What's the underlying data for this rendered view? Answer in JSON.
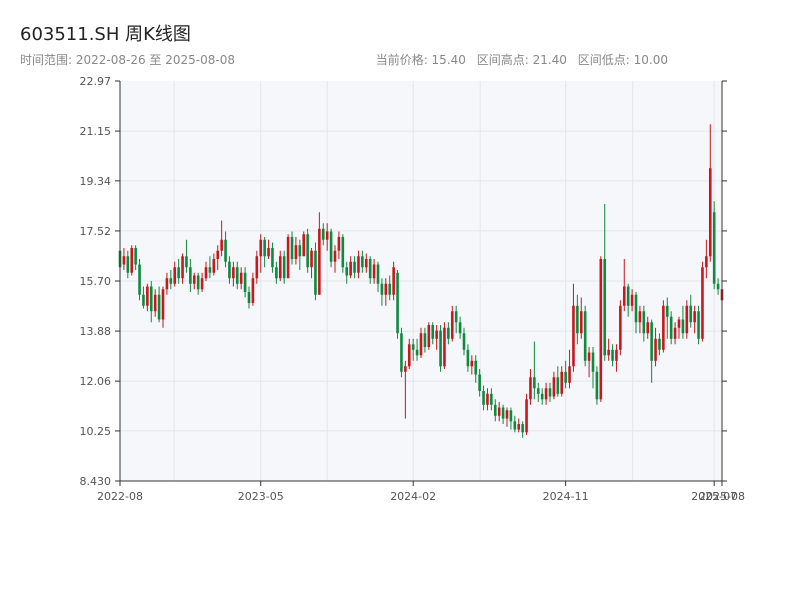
{
  "header": {
    "title": "603511.SH 周K线图",
    "range": "时间范围: 2022-08-26 至 2025-08-08",
    "current": "当前价格: 15.40",
    "high": "区间高点: 21.40",
    "low": "区间低点: 10.00"
  },
  "colors": {
    "up": "#c8171e",
    "down": "#0e8a3e",
    "plot_bg": "#f5f7fa",
    "grid": "#e3e6ea",
    "axis": "#333333"
  },
  "chart_data": {
    "type": "candlestick",
    "title": "603511.SH 周K线图",
    "xlabel": "",
    "ylabel": "",
    "ylim": [
      8.43,
      22.97
    ],
    "xlim": [
      "2022-08-26",
      "2025-08-08"
    ],
    "yticks": [
      "8.430",
      "10.25",
      "12.06",
      "13.88",
      "15.70",
      "17.52",
      "19.34",
      "21.15",
      "22.97"
    ],
    "xticks": [
      {
        "date": "2022-08-26",
        "label": "2022-08"
      },
      {
        "date": "2023-05-05",
        "label": "2023-05"
      },
      {
        "date": "2024-02-02",
        "label": "2024-02"
      },
      {
        "date": "2024-11-01",
        "label": "2024-11"
      },
      {
        "date": "2025-07-25",
        "label": "2025-07"
      },
      {
        "date": "2025-08-08",
        "label": "2025-08"
      }
    ],
    "grid": true,
    "candles": [
      [
        "2022-08-26",
        16.8,
        16.2,
        17.1,
        16.0
      ],
      [
        "2022-09-02",
        16.3,
        16.6,
        16.9,
        16.1
      ],
      [
        "2022-09-09",
        16.6,
        16.0,
        16.8,
        15.8
      ],
      [
        "2022-09-16",
        16.0,
        16.9,
        17.0,
        15.9
      ],
      [
        "2022-09-23",
        16.9,
        16.3,
        17.0,
        16.1
      ],
      [
        "2022-09-30",
        16.3,
        15.2,
        16.5,
        15.0
      ],
      [
        "2022-10-07",
        15.2,
        14.8,
        15.5,
        14.7
      ],
      [
        "2022-10-14",
        14.8,
        15.5,
        15.6,
        14.6
      ],
      [
        "2022-10-21",
        15.5,
        14.6,
        15.7,
        14.2
      ],
      [
        "2022-10-28",
        14.6,
        15.2,
        15.4,
        14.4
      ],
      [
        "2022-11-04",
        15.2,
        14.3,
        15.5,
        14.2
      ],
      [
        "2022-11-11",
        14.3,
        15.4,
        15.5,
        14.0
      ],
      [
        "2022-11-18",
        15.4,
        15.8,
        16.0,
        15.2
      ],
      [
        "2022-11-25",
        15.8,
        15.6,
        16.1,
        15.4
      ],
      [
        "2022-12-02",
        15.6,
        16.2,
        16.4,
        15.5
      ],
      [
        "2022-12-09",
        16.2,
        15.8,
        16.5,
        15.6
      ],
      [
        "2022-12-16",
        15.8,
        16.6,
        16.7,
        15.6
      ],
      [
        "2022-12-23",
        16.6,
        16.2,
        17.2,
        16.0
      ],
      [
        "2022-12-30",
        16.2,
        15.6,
        16.5,
        15.3
      ],
      [
        "2023-01-06",
        15.6,
        15.9,
        16.0,
        15.4
      ],
      [
        "2023-01-13",
        15.9,
        15.4,
        16.0,
        15.2
      ],
      [
        "2023-01-20",
        15.4,
        15.8,
        16.0,
        15.3
      ],
      [
        "2023-01-27",
        15.8,
        16.2,
        16.4,
        15.7
      ],
      [
        "2023-02-03",
        16.2,
        16.0,
        16.6,
        15.8
      ],
      [
        "2023-02-10",
        16.0,
        16.5,
        16.7,
        15.9
      ],
      [
        "2023-02-17",
        16.5,
        16.8,
        17.0,
        16.1
      ],
      [
        "2023-02-24",
        16.8,
        17.2,
        17.9,
        16.6
      ],
      [
        "2023-03-03",
        17.2,
        16.4,
        17.5,
        16.2
      ],
      [
        "2023-03-10",
        16.4,
        15.8,
        16.6,
        15.6
      ],
      [
        "2023-03-17",
        15.8,
        16.2,
        16.4,
        15.5
      ],
      [
        "2023-03-24",
        16.2,
        15.6,
        16.4,
        15.4
      ],
      [
        "2023-03-31",
        15.6,
        16.0,
        16.2,
        15.4
      ],
      [
        "2023-04-07",
        16.0,
        15.3,
        16.2,
        15.1
      ],
      [
        "2023-04-14",
        15.3,
        14.9,
        15.5,
        14.7
      ],
      [
        "2023-04-21",
        14.9,
        15.8,
        16.0,
        14.8
      ],
      [
        "2023-04-28",
        15.8,
        16.6,
        16.8,
        15.6
      ],
      [
        "2023-05-05",
        16.6,
        17.2,
        17.4,
        16.0
      ],
      [
        "2023-05-12",
        17.2,
        16.6,
        17.3,
        16.2
      ],
      [
        "2023-05-19",
        16.6,
        16.9,
        17.2,
        16.5
      ],
      [
        "2023-05-26",
        16.9,
        16.2,
        17.1,
        16.0
      ],
      [
        "2023-06-02",
        16.2,
        15.8,
        16.4,
        15.6
      ],
      [
        "2023-06-09",
        15.8,
        16.6,
        16.8,
        15.7
      ],
      [
        "2023-06-16",
        16.6,
        15.8,
        16.8,
        15.6
      ],
      [
        "2023-06-23",
        15.8,
        17.3,
        17.4,
        15.8
      ],
      [
        "2023-06-30",
        17.3,
        16.5,
        17.5,
        16.3
      ],
      [
        "2023-07-07",
        16.5,
        17.0,
        17.3,
        16.3
      ],
      [
        "2023-07-14",
        17.0,
        16.6,
        17.2,
        16.1
      ],
      [
        "2023-07-21",
        16.6,
        17.4,
        17.5,
        16.6
      ],
      [
        "2023-07-28",
        17.4,
        16.2,
        17.6,
        16.0
      ],
      [
        "2023-08-04",
        16.2,
        16.8,
        16.9,
        15.8
      ],
      [
        "2023-08-11",
        16.8,
        15.2,
        17.1,
        15.0
      ],
      [
        "2023-08-18",
        15.2,
        17.6,
        18.2,
        15.2
      ],
      [
        "2023-08-25",
        17.6,
        17.2,
        17.8,
        17.0
      ],
      [
        "2023-09-01",
        17.2,
        17.5,
        17.8,
        16.8
      ],
      [
        "2023-09-08",
        17.5,
        16.4,
        17.6,
        16.2
      ],
      [
        "2023-09-15",
        16.4,
        16.8,
        17.0,
        16.0
      ],
      [
        "2023-09-22",
        16.8,
        17.3,
        17.5,
        16.5
      ],
      [
        "2023-09-29",
        17.3,
        16.2,
        17.4,
        16.0
      ],
      [
        "2023-10-06",
        16.2,
        15.9,
        16.4,
        15.6
      ],
      [
        "2023-10-13",
        15.9,
        16.4,
        16.6,
        15.8
      ],
      [
        "2023-10-20",
        16.4,
        16.0,
        16.6,
        15.8
      ],
      [
        "2023-10-27",
        16.0,
        16.6,
        16.8,
        15.8
      ],
      [
        "2023-11-03",
        16.6,
        16.2,
        16.8,
        16.0
      ],
      [
        "2023-11-10",
        16.2,
        16.5,
        16.7,
        16.0
      ],
      [
        "2023-11-17",
        16.5,
        15.8,
        16.6,
        15.6
      ],
      [
        "2023-11-24",
        15.8,
        16.3,
        16.5,
        15.6
      ],
      [
        "2023-12-01",
        16.3,
        15.6,
        16.4,
        15.3
      ],
      [
        "2023-12-08",
        15.6,
        15.2,
        15.8,
        14.8
      ],
      [
        "2023-12-15",
        15.2,
        15.6,
        15.8,
        14.8
      ],
      [
        "2023-12-22",
        15.6,
        15.2,
        15.9,
        15.0
      ],
      [
        "2023-12-29",
        15.2,
        16.2,
        16.4,
        15.0
      ],
      [
        "2024-01-05",
        16.0,
        13.8,
        16.1,
        13.6
      ],
      [
        "2024-01-12",
        13.8,
        12.4,
        14.0,
        12.2
      ],
      [
        "2024-01-19",
        12.4,
        12.6,
        12.8,
        10.7
      ],
      [
        "2024-01-26",
        12.6,
        13.4,
        13.6,
        12.5
      ],
      [
        "2024-02-02",
        13.4,
        13.2,
        13.6,
        12.8
      ],
      [
        "2024-02-09",
        13.2,
        13.0,
        13.6,
        12.8
      ],
      [
        "2024-02-16",
        13.0,
        13.8,
        14.0,
        12.9
      ],
      [
        "2024-02-23",
        13.8,
        13.3,
        14.0,
        13.1
      ],
      [
        "2024-03-01",
        13.3,
        14.1,
        14.2,
        13.2
      ],
      [
        "2024-03-08",
        14.1,
        13.6,
        14.2,
        13.4
      ],
      [
        "2024-03-15",
        13.6,
        13.9,
        14.1,
        13.2
      ],
      [
        "2024-03-22",
        13.9,
        12.6,
        14.1,
        12.4
      ],
      [
        "2024-03-29",
        12.6,
        14.0,
        14.2,
        12.5
      ],
      [
        "2024-04-05",
        14.0,
        13.6,
        14.2,
        13.4
      ],
      [
        "2024-04-12",
        13.6,
        14.6,
        14.8,
        13.5
      ],
      [
        "2024-04-19",
        14.6,
        14.2,
        14.8,
        13.8
      ],
      [
        "2024-04-26",
        14.2,
        13.8,
        14.4,
        13.6
      ],
      [
        "2024-05-03",
        13.8,
        13.2,
        14.0,
        13.0
      ],
      [
        "2024-05-10",
        13.2,
        12.6,
        13.4,
        12.4
      ],
      [
        "2024-05-17",
        12.6,
        12.8,
        13.0,
        12.3
      ],
      [
        "2024-05-24",
        12.8,
        12.3,
        13.0,
        12.0
      ],
      [
        "2024-05-31",
        12.3,
        11.7,
        12.5,
        11.5
      ],
      [
        "2024-06-07",
        11.7,
        11.2,
        11.9,
        11.0
      ],
      [
        "2024-06-14",
        11.2,
        11.6,
        11.8,
        11.0
      ],
      [
        "2024-06-21",
        11.6,
        11.2,
        11.8,
        11.0
      ],
      [
        "2024-06-28",
        11.2,
        10.8,
        11.4,
        10.6
      ],
      [
        "2024-07-05",
        10.8,
        11.1,
        11.3,
        10.6
      ],
      [
        "2024-07-12",
        11.1,
        10.7,
        11.2,
        10.5
      ],
      [
        "2024-07-19",
        10.7,
        11.0,
        11.1,
        10.4
      ],
      [
        "2024-07-26",
        11.0,
        10.6,
        11.1,
        10.3
      ],
      [
        "2024-08-02",
        10.6,
        10.3,
        10.8,
        10.2
      ],
      [
        "2024-08-09",
        10.3,
        10.5,
        10.7,
        10.2
      ],
      [
        "2024-08-16",
        10.5,
        10.2,
        10.6,
        10.0
      ],
      [
        "2024-08-23",
        10.2,
        11.4,
        11.6,
        10.1
      ],
      [
        "2024-08-30",
        11.4,
        12.2,
        12.5,
        11.2
      ],
      [
        "2024-09-06",
        12.2,
        11.8,
        13.5,
        11.4
      ],
      [
        "2024-09-13",
        11.8,
        11.6,
        12.0,
        11.3
      ],
      [
        "2024-09-20",
        11.6,
        11.4,
        11.8,
        11.2
      ],
      [
        "2024-09-27",
        11.4,
        11.8,
        12.0,
        11.2
      ],
      [
        "2024-10-04",
        11.8,
        11.5,
        12.0,
        11.3
      ],
      [
        "2024-10-11",
        11.5,
        12.2,
        12.4,
        11.4
      ],
      [
        "2024-10-18",
        12.2,
        11.6,
        12.6,
        11.5
      ],
      [
        "2024-10-25",
        11.6,
        12.4,
        12.6,
        11.5
      ],
      [
        "2024-11-01",
        12.4,
        12.0,
        12.8,
        11.8
      ],
      [
        "2024-11-08",
        12.0,
        12.6,
        13.2,
        11.8
      ],
      [
        "2024-11-15",
        12.6,
        14.8,
        15.6,
        12.4
      ],
      [
        "2024-11-22",
        14.8,
        13.8,
        15.2,
        13.4
      ],
      [
        "2024-11-29",
        13.8,
        14.6,
        15.1,
        13.6
      ],
      [
        "2024-12-06",
        14.6,
        12.8,
        14.8,
        12.6
      ],
      [
        "2024-12-13",
        12.8,
        13.1,
        13.3,
        12.2
      ],
      [
        "2024-12-20",
        13.1,
        12.4,
        13.3,
        11.8
      ],
      [
        "2024-12-27",
        12.4,
        11.4,
        12.6,
        11.2
      ],
      [
        "2025-01-03",
        11.4,
        16.5,
        16.6,
        11.3
      ],
      [
        "2025-01-10",
        16.5,
        13.0,
        18.5,
        12.8
      ],
      [
        "2025-01-17",
        13.0,
        13.2,
        13.6,
        12.8
      ],
      [
        "2025-01-24",
        13.2,
        12.8,
        13.4,
        12.6
      ],
      [
        "2025-01-31",
        12.8,
        13.2,
        13.4,
        12.4
      ],
      [
        "2025-02-07",
        13.2,
        14.8,
        15.0,
        13.0
      ],
      [
        "2025-02-14",
        14.8,
        15.5,
        16.5,
        14.6
      ],
      [
        "2025-02-21",
        15.5,
        14.8,
        15.6,
        14.4
      ],
      [
        "2025-02-28",
        14.8,
        15.2,
        15.4,
        14.6
      ],
      [
        "2025-03-07",
        15.2,
        14.2,
        15.3,
        13.8
      ],
      [
        "2025-03-14",
        14.2,
        14.6,
        14.8,
        13.8
      ],
      [
        "2025-03-21",
        14.6,
        13.8,
        14.8,
        13.5
      ],
      [
        "2025-03-28",
        13.8,
        14.2,
        14.4,
        13.6
      ],
      [
        "2025-04-04",
        14.2,
        12.8,
        14.3,
        12.0
      ],
      [
        "2025-04-11",
        12.8,
        13.6,
        14.0,
        12.6
      ],
      [
        "2025-04-18",
        13.6,
        13.2,
        13.8,
        13.0
      ],
      [
        "2025-04-25",
        13.2,
        14.8,
        15.0,
        13.1
      ],
      [
        "2025-05-02",
        14.8,
        14.4,
        15.1,
        13.6
      ],
      [
        "2025-05-09",
        14.4,
        13.6,
        14.6,
        13.4
      ],
      [
        "2025-05-16",
        13.6,
        14.0,
        14.2,
        13.4
      ],
      [
        "2025-05-23",
        14.0,
        14.3,
        14.4,
        13.6
      ],
      [
        "2025-05-30",
        14.3,
        13.8,
        14.8,
        13.6
      ],
      [
        "2025-06-06",
        13.8,
        14.8,
        15.0,
        13.6
      ],
      [
        "2025-06-13",
        14.8,
        14.2,
        15.2,
        14.0
      ],
      [
        "2025-06-20",
        14.2,
        14.6,
        14.8,
        13.8
      ],
      [
        "2025-06-27",
        14.6,
        13.6,
        14.8,
        13.4
      ],
      [
        "2025-07-04",
        13.6,
        16.2,
        16.4,
        13.5
      ],
      [
        "2025-07-11",
        16.2,
        16.6,
        17.2,
        15.8
      ],
      [
        "2025-07-18",
        16.6,
        19.8,
        21.4,
        16.4
      ],
      [
        "2025-07-25",
        18.2,
        15.6,
        18.6,
        15.4
      ],
      [
        "2025-08-01",
        15.6,
        15.4,
        15.8,
        15.2
      ],
      [
        "2025-08-08",
        15.0,
        15.4,
        15.6,
        14.9
      ]
    ]
  }
}
